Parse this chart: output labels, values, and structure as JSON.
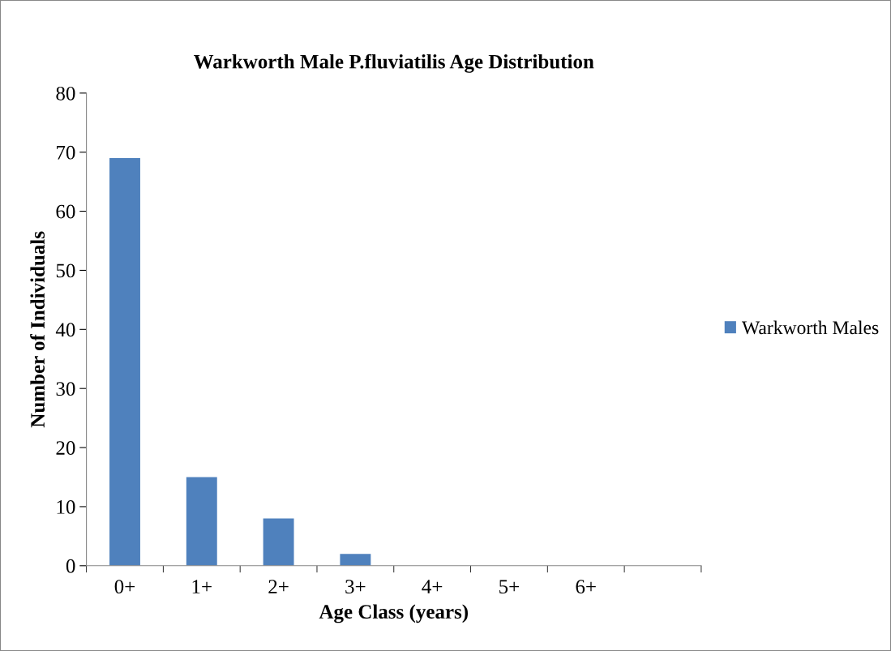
{
  "chart_data": {
    "type": "bar",
    "title": "Warkworth Male P.fluviatilis Age Distribution",
    "xlabel": "Age Class (years)",
    "ylabel": "Number of Individuals",
    "categories": [
      "0+",
      "1+",
      "2+",
      "3+",
      "4+",
      "5+",
      "6+",
      null
    ],
    "series": [
      {
        "name": "Warkworth Males",
        "color": "#4f81bd",
        "values": [
          69,
          15,
          8,
          2,
          0,
          0,
          0,
          0
        ]
      }
    ],
    "ylim": [
      0,
      80
    ],
    "yticks": [
      0,
      10,
      20,
      30,
      40,
      50,
      60,
      70,
      80
    ],
    "grid": false,
    "legend": "right"
  }
}
